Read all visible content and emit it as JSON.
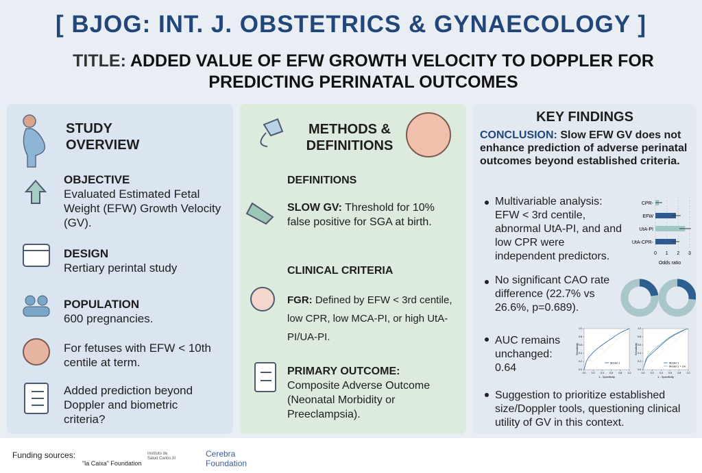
{
  "header": {
    "journal": "[ BJOG: INT. J. OBSTETRICS & GYNAECOLOGY ]",
    "title_label": "TITLE:",
    "title": "ADDED VALUE OF EFW GROWTH VELOCITY TO DOPPLER FOR PREDICTING PERINATAL OUTCOMES"
  },
  "study_overview": {
    "heading": "STUDY OVERVIEW",
    "items": [
      {
        "label": "OBJECTIVE",
        "text": "Evaluated Estimated Fetal Weight (EFW) Growth Velocity (GV)."
      },
      {
        "label": "DESIGN",
        "text": "Rertiary perintal study"
      },
      {
        "label": "POPULATION",
        "text": "600 pregnancies."
      },
      {
        "text": "For fetuses with EFW < 10th centile at term."
      },
      {
        "text": "Added prediction beyond Doppler and biometric criteria?"
      }
    ]
  },
  "methods": {
    "heading": "METHODS & DEFINITIONS",
    "sections": [
      {
        "heading": "DEFINITIONS",
        "label": "SLOW GV:",
        "text": "Threshold for 10% false positive for SGA at birth."
      },
      {
        "heading": "CLINICAL CRITERIA",
        "label": "FGR:",
        "text": "Defined by EFW < 3rd centile, low CPR, low MCA-PI, or high UtA-PI/UA-PI."
      },
      {
        "label": "PRIMARY OUTCOME:",
        "text": "Composite Adverse Outcome (Neonatal Morbidity or Preeclampsia)."
      }
    ]
  },
  "key_findings": {
    "heading": "KEY FINDINGS",
    "conclusion_label": "CONCLUSION:",
    "conclusion": "Slow EFW GV does not enhance prediction of adverse perinatal outcomes beyond established criteria.",
    "bullets": [
      "Multivariable analysis: EFW < 3rd centile, abnormal UtA-PI, and and low CPR were independent predictors.",
      "No significant CAO rate difference (22.7% vs 26.6%, p=0.689).",
      "AUC remains unchanged: 0.64",
      "Suggestion to prioritize established size/Doppler tools, questioning clinical utility of GV in this context."
    ],
    "odds_chart": {
      "type": "bar",
      "categories": [
        "CPR-",
        "EFW",
        "UtA-PI",
        "UtA-CPR-"
      ],
      "values": [
        0.3,
        1.8,
        2.6,
        1.8
      ],
      "errors": [
        0.3,
        0.4,
        0.5,
        0.3
      ],
      "colors": [
        "#9fc7c4",
        "#2f5a8f",
        "#9fc7c4",
        "#2f5a8f"
      ],
      "xlim": [
        0,
        3
      ],
      "xticks": [
        0,
        1,
        2,
        3
      ],
      "xlabel": "Odds ratio"
    },
    "donut_chart": {
      "type": "pie",
      "values": [
        22.7,
        26.6
      ],
      "color": "#2f5f8f",
      "rest_color": "#a9c7cb"
    },
    "roc_charts": {
      "type": "line",
      "xlim": [
        0,
        1
      ],
      "ylim": [
        0,
        1
      ],
      "xlabel": "1 - Specificity",
      "ylabel": "Sensitivity",
      "xticks": [
        {
          "value": 0,
          "label": "0.0"
        },
        {
          "value": 0.2,
          "label": "0.2"
        },
        {
          "value": 0.4,
          "label": "0.4"
        },
        {
          "value": 0.6,
          "label": "0.6"
        },
        {
          "value": 0.8,
          "label": "0.8"
        },
        {
          "value": 1,
          "label": "1.0"
        }
      ],
      "yticks": [
        {
          "value": 0,
          "label": "0.0"
        },
        {
          "value": 0.2,
          "label": "0.2"
        },
        {
          "value": 0.4,
          "label": "0.4"
        },
        {
          "value": 0.6,
          "label": "0.6"
        },
        {
          "value": 0.8,
          "label": "0.8"
        },
        {
          "value": 1,
          "label": "1.0"
        }
      ],
      "charts": [
        {
          "series": [
            {
              "name": "Model 1",
              "color": "#2c5f9e",
              "x": [
                0,
                0.05,
                0.1,
                0.2,
                0.3,
                0.4,
                0.5,
                0.6,
                0.7,
                0.8,
                0.9,
                1
              ],
              "values": [
                0,
                0.2,
                0.3,
                0.42,
                0.52,
                0.6,
                0.68,
                0.75,
                0.83,
                0.9,
                0.95,
                1
              ]
            }
          ]
        },
        {
          "series": [
            {
              "name": "Model 1",
              "color": "#2c5f9e",
              "x": [
                0,
                0.05,
                0.1,
                0.2,
                0.3,
                0.4,
                0.5,
                0.6,
                0.7,
                0.8,
                0.9,
                1
              ],
              "values": [
                0,
                0.18,
                0.3,
                0.4,
                0.5,
                0.6,
                0.7,
                0.78,
                0.85,
                0.9,
                0.96,
                1
              ]
            },
            {
              "name": "Model 1 + GV",
              "color": "#7fb5b0",
              "x": [
                0,
                0.05,
                0.1,
                0.2,
                0.3,
                0.4,
                0.5,
                0.6,
                0.7,
                0.8,
                0.9,
                1
              ],
              "values": [
                0,
                0.22,
                0.33,
                0.45,
                0.55,
                0.63,
                0.72,
                0.8,
                0.87,
                0.92,
                0.97,
                1
              ]
            }
          ]
        }
      ]
    }
  },
  "footer": {
    "label": "Funding sources:",
    "funders": [
      "\"la Caixa\" Foundation",
      "Instituto de Salud Carlos III",
      "Cerebra Foundation"
    ]
  }
}
